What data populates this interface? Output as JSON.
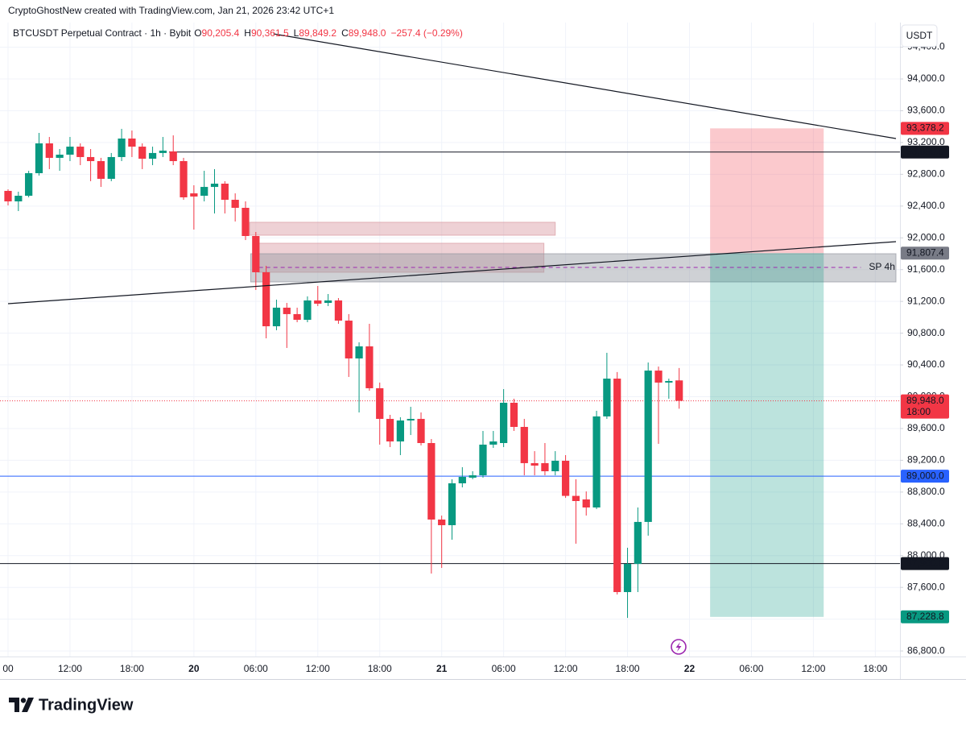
{
  "header": "CryptoGhostNew created with TradingView.com, Jan 21, 2026 23:42 UTC+1",
  "brand": "TradingView",
  "chart_data": {
    "type": "candlestick",
    "title": "BTCUSDT Perpetual Contract · 1h · Bybit",
    "ohlc_labels": [
      {
        "key": "O",
        "text": "90,205.4"
      },
      {
        "key": "H",
        "text": "90,361.5"
      },
      {
        "key": "L",
        "text": "89,849.2"
      },
      {
        "key": "C",
        "text": "89,948.0"
      }
    ],
    "change": "−257.4 (−0.29%)",
    "currency": "USDT",
    "x": [
      6,
      7,
      8,
      9,
      10,
      11,
      12,
      13,
      14,
      15,
      16,
      17,
      18,
      19,
      20,
      21,
      22,
      23,
      24,
      25,
      26,
      27,
      28,
      29,
      30,
      31,
      32,
      33,
      34,
      35,
      36,
      37,
      38,
      39,
      40,
      41,
      42,
      43,
      44,
      45,
      46,
      47,
      48,
      49,
      50,
      51,
      52,
      53,
      54,
      55,
      56,
      57,
      58,
      59,
      60,
      61,
      62,
      63,
      64,
      65,
      66,
      67,
      68,
      69,
      70,
      71
    ],
    "open": [
      92591,
      92459,
      92530,
      92814,
      93189,
      93007,
      93047,
      93148,
      93017,
      92966,
      92743,
      93017,
      93250,
      93148,
      92996,
      93068,
      93088,
      92966,
      92560,
      92530,
      92641,
      92682,
      92479,
      92378,
      92023,
      91567,
      90887,
      91121,
      91040,
      90968,
      91212,
      91181,
      91212,
      90958,
      90482,
      90634,
      90107,
      89721,
      89437,
      89701,
      89721,
      89417,
      88454,
      88383,
      88910,
      88981,
      89011,
      89397,
      89417,
      89924,
      89620,
      89164,
      89164,
      89062,
      89194,
      88752,
      88707,
      88606,
      89752,
      90228,
      87541,
      87896,
      88424,
      90329,
      90178,
      90205.4
    ],
    "high": [
      92611,
      92581,
      92844,
      93321,
      93270,
      93118,
      93270,
      93189,
      93118,
      93007,
      93068,
      93372,
      93351,
      93189,
      93148,
      93270,
      93290,
      93007,
      92662,
      92844,
      92865,
      92713,
      92560,
      92459,
      92074,
      91648,
      91222,
      91181,
      91121,
      91263,
      91394,
      91293,
      91242,
      91040,
      90685,
      90918,
      90178,
      89772,
      89742,
      89873,
      89802,
      89468,
      88504,
      88961,
      89113,
      89062,
      89569,
      89569,
      90096,
      89975,
      89721,
      89315,
      89417,
      89315,
      89265,
      88961,
      88808,
      89823,
      90553,
      90310,
      88099,
      88606,
      90431,
      90380,
      90228,
      90361.5
    ],
    "low": [
      92408,
      92337,
      92510,
      92784,
      92865,
      92844,
      92966,
      92915,
      92713,
      92641,
      92713,
      92966,
      93017,
      92865,
      92915,
      93017,
      92915,
      92479,
      92104,
      92459,
      92307,
      92307,
      92206,
      91972,
      91344,
      90735,
      90837,
      90614,
      90938,
      90938,
      91141,
      91141,
      90918,
      90249,
      89802,
      90076,
      89397,
      89366,
      89265,
      89518,
      89387,
      87775,
      87845,
      88200,
      88859,
      88961,
      88981,
      89356,
      89366,
      89569,
      89011,
      89011,
      89011,
      89011,
      88727,
      88150,
      88504,
      88586,
      89721,
      87511,
      87216,
      87541,
      88251,
      89407,
      89975,
      89849.2
    ],
    "close": [
      92459,
      92530,
      92814,
      93189,
      93007,
      93047,
      93148,
      93017,
      92966,
      92743,
      93017,
      93250,
      93148,
      92996,
      93068,
      93098,
      92966,
      92510,
      92520,
      92641,
      92682,
      92479,
      92378,
      92023,
      91567,
      90887,
      91121,
      91040,
      90968,
      91212,
      91171,
      91212,
      90958,
      90482,
      90634,
      90107,
      89721,
      89437,
      89701,
      89721,
      89417,
      88454,
      88383,
      88910,
      88991,
      89011,
      89397,
      89437,
      89924,
      89620,
      89164,
      89133,
      89062,
      89194,
      88752,
      88687,
      88606,
      89752,
      90228,
      87541,
      87896,
      88424,
      90329,
      90178,
      90198,
      89948.0
    ],
    "up_color": "#089981",
    "down_color": "#f23645",
    "xlim": [
      6,
      92
    ],
    "xticks": [
      {
        "value": 6,
        "label": "00"
      },
      {
        "value": 12,
        "label": "12:00"
      },
      {
        "value": 18,
        "label": "18:00"
      },
      {
        "value": 24,
        "label": "20"
      },
      {
        "value": 30,
        "label": "06:00"
      },
      {
        "value": 36,
        "label": "12:00"
      },
      {
        "value": 42,
        "label": "18:00"
      },
      {
        "value": 48,
        "label": "21"
      },
      {
        "value": 54,
        "label": "06:00"
      },
      {
        "value": 60,
        "label": "12:00"
      },
      {
        "value": 66,
        "label": "18:00"
      },
      {
        "value": 72,
        "label": "22"
      },
      {
        "value": 78,
        "label": "06:00"
      },
      {
        "value": 84,
        "label": "12:00"
      },
      {
        "value": 90,
        "label": "18:00"
      }
    ],
    "ylim": [
      86730,
      94710
    ],
    "yticks": [
      {
        "value": 86800,
        "label": "86,800.0"
      },
      {
        "value": 87200,
        "label": "87,200.0"
      },
      {
        "value": 87600,
        "label": "87,600.0"
      },
      {
        "value": 88000,
        "label": "88,000.0"
      },
      {
        "value": 88400,
        "label": "88,400.0"
      },
      {
        "value": 88800,
        "label": "88,800.0"
      },
      {
        "value": 89200,
        "label": "89,200.0"
      },
      {
        "value": 89600,
        "label": "89,600.0"
      },
      {
        "value": 90000,
        "label": "90,000.0"
      },
      {
        "value": 90400,
        "label": "90,400.0"
      },
      {
        "value": 90800,
        "label": "90,800.0"
      },
      {
        "value": 91200,
        "label": "91,200.0"
      },
      {
        "value": 91600,
        "label": "91,600.0"
      },
      {
        "value": 92000,
        "label": "92,000.0"
      },
      {
        "value": 92400,
        "label": "92,400.0"
      },
      {
        "value": 92800,
        "label": "92,800.0"
      },
      {
        "value": 93200,
        "label": "93,200.0"
      },
      {
        "value": 93600,
        "label": "93,600.0"
      },
      {
        "value": 94000,
        "label": "94,000.0"
      },
      {
        "value": 94400,
        "label": "94,400.0"
      }
    ],
    "grid": true,
    "levels": [
      {
        "value": 93080,
        "label": "93,080.0",
        "color": "#131722",
        "from": 21.6
      },
      {
        "value": 89000,
        "label": "89,000.0",
        "color": "#2962ff"
      },
      {
        "value": 87900,
        "label": "87,900.0",
        "color": "#131722"
      }
    ],
    "last_price": {
      "value": 89948.0,
      "label": "89,948.0",
      "countdown": "18:00",
      "color": "#f23645"
    },
    "trendlines": [
      {
        "x": [
          31.7,
          92
        ],
        "y": [
          94568,
          93250
        ],
        "color": "#131722"
      },
      {
        "x": [
          6,
          92
        ],
        "y": [
          91171,
          91952
        ],
        "color": "#131722"
      }
    ],
    "zones": [
      {
        "x": [
          29.4,
          59
        ],
        "y": [
          92033,
          92196
        ],
        "color": "#d99aa1"
      },
      {
        "x": [
          30.2,
          57.9
        ],
        "y": [
          91567,
          91932
        ],
        "color": "#d99aa1"
      },
      {
        "x": [
          29.5,
          92
        ],
        "y": [
          91445,
          91800
        ],
        "color": "#9598a1"
      }
    ],
    "sp_line": {
      "name": "SP 4h",
      "value": 91628,
      "x": [
        30.3,
        88.6
      ],
      "color": "#9c27b0"
    },
    "position": {
      "x": [
        74,
        85
      ],
      "stop": 93378.2,
      "entry": 91807.4,
      "target": 87228.8,
      "stop_label": "93,378.2",
      "entry_label": "91,807.4",
      "target_label": "87,228.8",
      "stop_color": "#f23645",
      "entry_color": "#787b86",
      "target_color": "#089981"
    }
  }
}
